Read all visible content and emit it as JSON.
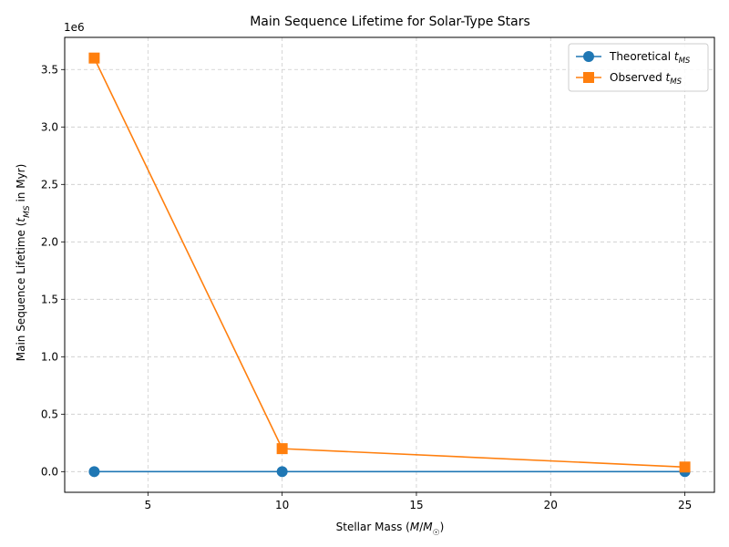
{
  "chart_data": {
    "type": "line",
    "title": "Main Sequence Lifetime for Solar-Type Stars",
    "xlabel": "Stellar Mass (M/M☉)",
    "ylabel": "Main Sequence Lifetime (tMS in Myr)",
    "y_offset_label": "1e6",
    "xlim": [
      1.9,
      26.1
    ],
    "ylim": [
      -180000,
      3780000
    ],
    "x_ticks": [
      5,
      10,
      15,
      20,
      25
    ],
    "x_tick_labels": [
      "5",
      "10",
      "15",
      "20",
      "25"
    ],
    "y_ticks": [
      0,
      500000,
      1000000,
      1500000,
      2000000,
      2500000,
      3000000,
      3500000
    ],
    "y_tick_labels": [
      "0.0",
      "0.5",
      "1.0",
      "1.5",
      "2.0",
      "2.5",
      "3.0",
      "3.5"
    ],
    "grid": true,
    "legend_position": "top-right",
    "x": [
      3,
      10,
      25
    ],
    "series": [
      {
        "name": "Theoretical tMS",
        "legend_main": "Theoretical ",
        "legend_sub": "MS",
        "values": [
          0,
          0,
          0
        ],
        "color": "#1f77b4",
        "marker": "circle"
      },
      {
        "name": "Observed tMS",
        "legend_main": "Observed ",
        "legend_sub": "MS",
        "values": [
          3600000,
          200000,
          40000
        ],
        "color": "#ff7f0e",
        "marker": "square"
      }
    ]
  }
}
